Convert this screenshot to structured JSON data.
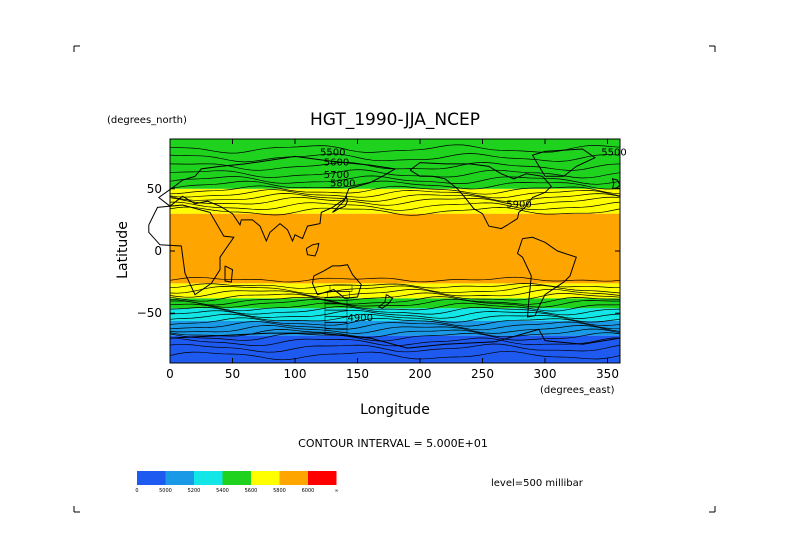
{
  "chart_data": {
    "type": "contour",
    "title": "HGT_1990-JJA_NCEP",
    "xlabel": "Longitude",
    "ylabel": "Latitude",
    "x_units": "(degrees_east)",
    "y_units": "(degrees_north)",
    "xlim": [
      0,
      360
    ],
    "ylim": [
      -90,
      90
    ],
    "x_ticks": [
      0,
      50,
      100,
      150,
      200,
      250,
      300,
      350
    ],
    "y_ticks": [
      -50,
      0,
      50
    ],
    "contour_interval_text": "CONTOUR INTERVAL = 5.000E+01",
    "level_text": "level=500 millibar",
    "contour_labels": [
      "5500",
      "5600",
      "5700",
      "5800",
      "5900",
      "4900",
      "5500"
    ],
    "fill_bands": [
      {
        "from": -90,
        "to": -68,
        "color": "#1e5af0"
      },
      {
        "from": -68,
        "to": -56,
        "color": "#1a9ae6"
      },
      {
        "from": -56,
        "to": -46,
        "color": "#12e6e6"
      },
      {
        "from": -46,
        "to": -38,
        "color": "#1ed21e"
      },
      {
        "from": -38,
        "to": -26,
        "color": "#ffff00"
      },
      {
        "from": -26,
        "to": 30,
        "color": "#ffa500"
      },
      {
        "from": 30,
        "to": 50,
        "color": "#ffff00"
      },
      {
        "from": 50,
        "to": 90,
        "color": "#1ed21e"
      }
    ],
    "colorbar": {
      "colors": [
        "#1e5af0",
        "#1a9ae6",
        "#12e6e6",
        "#1ed21e",
        "#ffff00",
        "#ffa500",
        "#ff0000"
      ],
      "labels": [
        "0",
        "5000",
        "5200",
        "5400",
        "5600",
        "5800",
        "6000",
        "∞"
      ]
    }
  }
}
